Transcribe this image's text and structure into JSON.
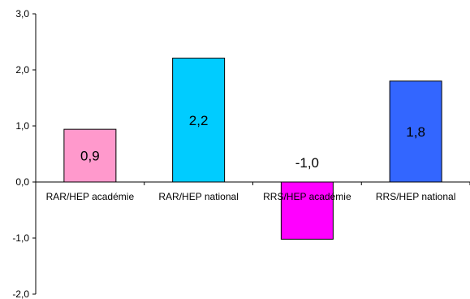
{
  "chart_data": {
    "type": "bar",
    "categories": [
      "RAR/HEP académie",
      "RAR/HEP national",
      "RRS/HEP académie",
      "RRS/HEP national"
    ],
    "values": [
      0.94,
      2.21,
      -1.02,
      1.8
    ],
    "data_labels": [
      "0,9",
      "2,2",
      "-1,0",
      "1,8"
    ],
    "colors": [
      "#ff99cc",
      "#00ccff",
      "#ff00ff",
      "#3366ff"
    ],
    "ylim": [
      -2,
      3
    ],
    "yticks": [
      -2,
      -1,
      0,
      1,
      2,
      3
    ],
    "ytick_labels": [
      "-2,0",
      "-1,0",
      "0,0",
      "1,0",
      "2,0",
      "3,0"
    ],
    "title": "",
    "xlabel": "",
    "ylabel": "",
    "grid": false,
    "legend": false
  }
}
